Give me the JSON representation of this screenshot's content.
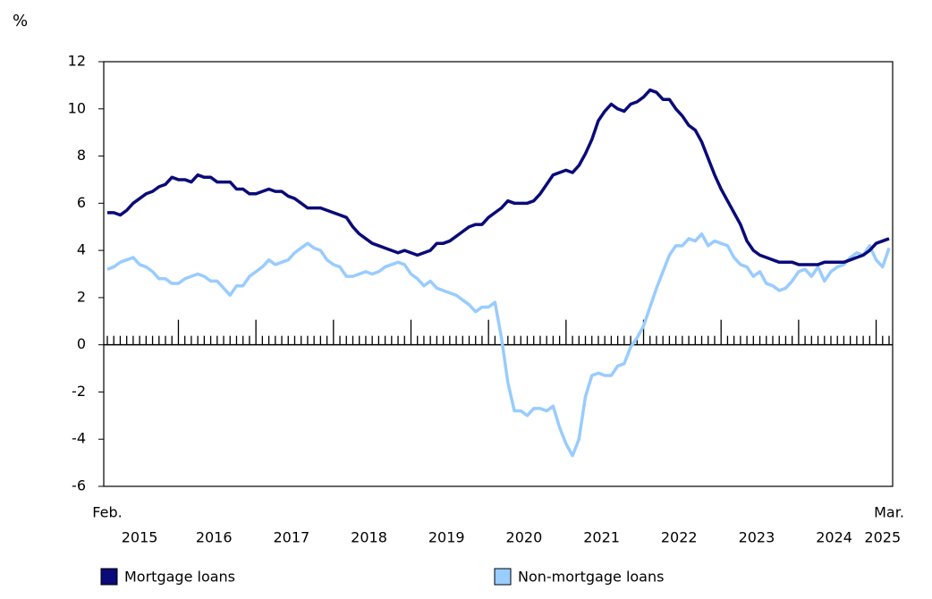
{
  "chart_data": {
    "type": "line",
    "y_unit_label": "%",
    "x": [
      "2015-02",
      "2015-03",
      "2015-04",
      "2015-05",
      "2015-06",
      "2015-07",
      "2015-08",
      "2015-09",
      "2015-10",
      "2015-11",
      "2015-12",
      "2016-01",
      "2016-02",
      "2016-03",
      "2016-04",
      "2016-05",
      "2016-06",
      "2016-07",
      "2016-08",
      "2016-09",
      "2016-10",
      "2016-11",
      "2016-12",
      "2017-01",
      "2017-02",
      "2017-03",
      "2017-04",
      "2017-05",
      "2017-06",
      "2017-07",
      "2017-08",
      "2017-09",
      "2017-10",
      "2017-11",
      "2017-12",
      "2018-01",
      "2018-02",
      "2018-03",
      "2018-04",
      "2018-05",
      "2018-06",
      "2018-07",
      "2018-08",
      "2018-09",
      "2018-10",
      "2018-11",
      "2018-12",
      "2019-01",
      "2019-02",
      "2019-03",
      "2019-04",
      "2019-05",
      "2019-06",
      "2019-07",
      "2019-08",
      "2019-09",
      "2019-10",
      "2019-11",
      "2019-12",
      "2020-01",
      "2020-02",
      "2020-03",
      "2020-04",
      "2020-05",
      "2020-06",
      "2020-07",
      "2020-08",
      "2020-09",
      "2020-10",
      "2020-11",
      "2020-12",
      "2021-01",
      "2021-02",
      "2021-03",
      "2021-04",
      "2021-05",
      "2021-06",
      "2021-07",
      "2021-08",
      "2021-09",
      "2021-10",
      "2021-11",
      "2021-12",
      "2022-01",
      "2022-02",
      "2022-03",
      "2022-04",
      "2022-05",
      "2022-06",
      "2022-07",
      "2022-08",
      "2022-09",
      "2022-10",
      "2022-11",
      "2022-12",
      "2023-01",
      "2023-02",
      "2023-03",
      "2023-04",
      "2023-05",
      "2023-06",
      "2023-07",
      "2023-08",
      "2023-09",
      "2023-10",
      "2023-11",
      "2023-12",
      "2024-01",
      "2024-02",
      "2024-03",
      "2024-04",
      "2024-05",
      "2024-06",
      "2024-07",
      "2024-08",
      "2024-09",
      "2024-10",
      "2024-11",
      "2024-12",
      "2025-01",
      "2025-02",
      "2025-03"
    ],
    "x_start_label": "Feb.",
    "x_end_label": "Mar.",
    "year_labels": [
      "2015",
      "2016",
      "2017",
      "2018",
      "2019",
      "2020",
      "2021",
      "2022",
      "2023",
      "2024",
      "2025"
    ],
    "ylim": [
      -6,
      12
    ],
    "yticks": [
      -6,
      -4,
      -2,
      0,
      2,
      4,
      6,
      8,
      10,
      12
    ],
    "grid": false,
    "series": [
      {
        "name": "Mortgage loans",
        "color": "#0a0a78",
        "values": [
          5.6,
          5.6,
          5.5,
          5.7,
          6.0,
          6.2,
          6.4,
          6.5,
          6.7,
          6.8,
          7.1,
          7.0,
          7.0,
          6.9,
          7.2,
          7.1,
          7.1,
          6.9,
          6.9,
          6.9,
          6.6,
          6.6,
          6.4,
          6.4,
          6.5,
          6.6,
          6.5,
          6.5,
          6.3,
          6.2,
          6.0,
          5.8,
          5.8,
          5.8,
          5.7,
          5.6,
          5.5,
          5.4,
          5.0,
          4.7,
          4.5,
          4.3,
          4.2,
          4.1,
          4.0,
          3.9,
          4.0,
          3.9,
          3.8,
          3.9,
          4.0,
          4.3,
          4.3,
          4.4,
          4.6,
          4.8,
          5.0,
          5.1,
          5.1,
          5.4,
          5.6,
          5.8,
          6.1,
          6.0,
          6.0,
          6.0,
          6.1,
          6.4,
          6.8,
          7.2,
          7.3,
          7.4,
          7.3,
          7.6,
          8.1,
          8.7,
          9.5,
          9.9,
          10.2,
          10.0,
          9.9,
          10.2,
          10.3,
          10.5,
          10.8,
          10.7,
          10.4,
          10.4,
          10.0,
          9.7,
          9.3,
          9.1,
          8.6,
          7.9,
          7.2,
          6.6,
          6.1,
          5.6,
          5.1,
          4.4,
          4.0,
          3.8,
          3.7,
          3.6,
          3.5,
          3.5,
          3.5,
          3.4,
          3.4,
          3.4,
          3.4,
          3.5,
          3.5,
          3.5,
          3.5,
          3.6,
          3.7,
          3.8,
          4.0,
          4.3,
          4.4,
          4.5
        ]
      },
      {
        "name": "Non-mortgage loans",
        "color": "#99ccff",
        "values": [
          3.2,
          3.3,
          3.5,
          3.6,
          3.7,
          3.4,
          3.3,
          3.1,
          2.8,
          2.8,
          2.6,
          2.6,
          2.8,
          2.9,
          3.0,
          2.9,
          2.7,
          2.7,
          2.4,
          2.1,
          2.5,
          2.5,
          2.9,
          3.1,
          3.3,
          3.6,
          3.4,
          3.5,
          3.6,
          3.9,
          4.1,
          4.3,
          4.1,
          4.0,
          3.6,
          3.4,
          3.3,
          2.9,
          2.9,
          3.0,
          3.1,
          3.0,
          3.1,
          3.3,
          3.4,
          3.5,
          3.4,
          3.0,
          2.8,
          2.5,
          2.7,
          2.4,
          2.3,
          2.2,
          2.1,
          1.9,
          1.7,
          1.4,
          1.6,
          1.6,
          1.8,
          0.3,
          -1.6,
          -2.8,
          -2.8,
          -3.0,
          -2.7,
          -2.7,
          -2.8,
          -2.6,
          -3.5,
          -4.2,
          -4.7,
          -4.0,
          -2.2,
          -1.3,
          -1.2,
          -1.3,
          -1.3,
          -0.9,
          -0.8,
          -0.1,
          0.3,
          0.8,
          1.6,
          2.4,
          3.1,
          3.8,
          4.2,
          4.2,
          4.5,
          4.4,
          4.7,
          4.2,
          4.4,
          4.3,
          4.2,
          3.7,
          3.4,
          3.3,
          2.9,
          3.1,
          2.6,
          2.5,
          2.3,
          2.4,
          2.7,
          3.1,
          3.2,
          2.9,
          3.3,
          2.7,
          3.1,
          3.3,
          3.4,
          3.7,
          3.9,
          3.8,
          4.2,
          3.6,
          3.3,
          4.1
        ]
      }
    ]
  }
}
